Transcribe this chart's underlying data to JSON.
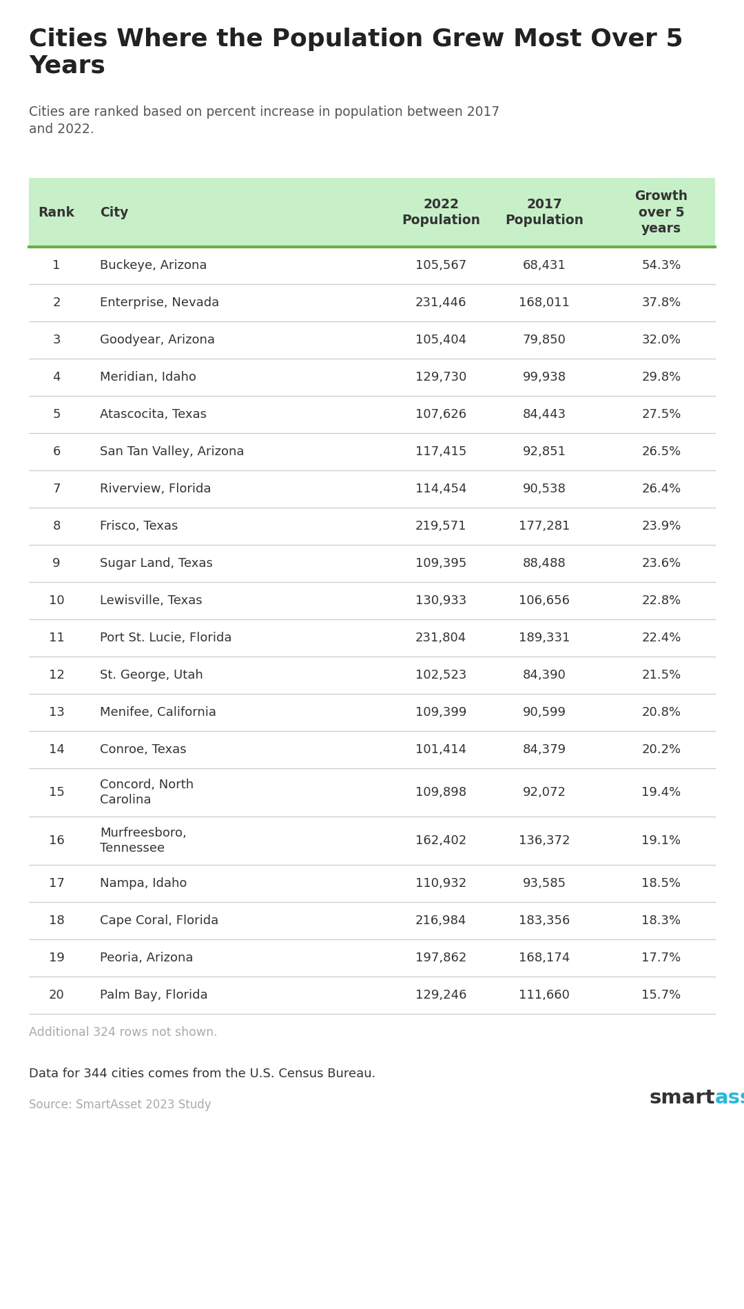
{
  "title": "Cities Where the Population Grew Most Over 5\nYears",
  "subtitle": "Cities are ranked based on percent increase in population between 2017\nand 2022.",
  "columns": [
    "Rank",
    "City",
    "2022\nPopulation",
    "2017\nPopulation",
    "Growth\nover 5\nyears"
  ],
  "rows": [
    [
      1,
      "Buckeye, Arizona",
      "105,567",
      "68,431",
      "54.3%"
    ],
    [
      2,
      "Enterprise, Nevada",
      "231,446",
      "168,011",
      "37.8%"
    ],
    [
      3,
      "Goodyear, Arizona",
      "105,404",
      "79,850",
      "32.0%"
    ],
    [
      4,
      "Meridian, Idaho",
      "129,730",
      "99,938",
      "29.8%"
    ],
    [
      5,
      "Atascocita, Texas",
      "107,626",
      "84,443",
      "27.5%"
    ],
    [
      6,
      "San Tan Valley, Arizona",
      "117,415",
      "92,851",
      "26.5%"
    ],
    [
      7,
      "Riverview, Florida",
      "114,454",
      "90,538",
      "26.4%"
    ],
    [
      8,
      "Frisco, Texas",
      "219,571",
      "177,281",
      "23.9%"
    ],
    [
      9,
      "Sugar Land, Texas",
      "109,395",
      "88,488",
      "23.6%"
    ],
    [
      10,
      "Lewisville, Texas",
      "130,933",
      "106,656",
      "22.8%"
    ],
    [
      11,
      "Port St. Lucie, Florida",
      "231,804",
      "189,331",
      "22.4%"
    ],
    [
      12,
      "St. George, Utah",
      "102,523",
      "84,390",
      "21.5%"
    ],
    [
      13,
      "Menifee, California",
      "109,399",
      "90,599",
      "20.8%"
    ],
    [
      14,
      "Conroe, Texas",
      "101,414",
      "84,379",
      "20.2%"
    ],
    [
      15,
      "Concord, North\nCarolina",
      "109,898",
      "92,072",
      "19.4%"
    ],
    [
      16,
      "Murfreesboro,\nTennessee",
      "162,402",
      "136,372",
      "19.1%"
    ],
    [
      17,
      "Nampa, Idaho",
      "110,932",
      "93,585",
      "18.5%"
    ],
    [
      18,
      "Cape Coral, Florida",
      "216,984",
      "183,356",
      "18.3%"
    ],
    [
      19,
      "Peoria, Arizona",
      "197,862",
      "168,174",
      "17.7%"
    ],
    [
      20,
      "Palm Bay, Florida",
      "129,246",
      "111,660",
      "15.7%"
    ]
  ],
  "footer_note": "Additional 324 rows not shown.",
  "footer_data": "Data for 344 cities comes from the U.S. Census Bureau.",
  "footer_source": "Source: SmartAsset 2023 Study",
  "header_bg": "#c8f0c8",
  "header_line_color": "#6ab04c",
  "row_line_color": "#cccccc",
  "title_color": "#222222",
  "subtitle_color": "#555555",
  "header_text_color": "#333333",
  "data_text_color": "#333333",
  "footer_note_color": "#aaaaaa",
  "footer_data_color": "#333333",
  "footer_source_color": "#aaaaaa",
  "smartasset_black": "#333333",
  "smartasset_blue": "#29b8d8",
  "background_color": "#ffffff"
}
